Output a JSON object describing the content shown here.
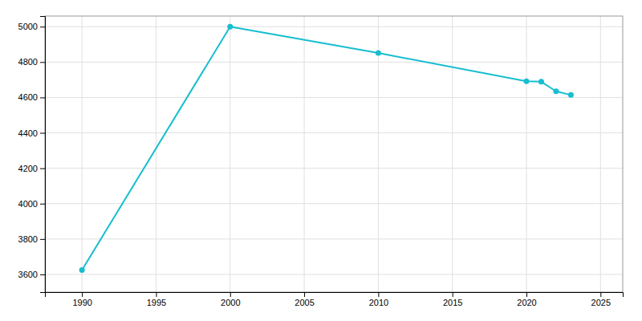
{
  "chart_data": {
    "type": "line",
    "x": [
      1990,
      2000,
      2010,
      2020,
      2021,
      2022,
      2023
    ],
    "values": [
      3625,
      5000,
      4851,
      4692,
      4689,
      4635,
      4614
    ],
    "color": "#17BECF",
    "marker": "circle",
    "xlim": [
      1987.5,
      2026.5
    ],
    "ylim": [
      3500,
      5060
    ],
    "xticks": [
      1990,
      1995,
      2000,
      2005,
      2010,
      2015,
      2020,
      2025
    ],
    "yticks": [
      3600,
      3800,
      4000,
      4200,
      4400,
      4600,
      4800,
      5000
    ],
    "grid": true
  }
}
